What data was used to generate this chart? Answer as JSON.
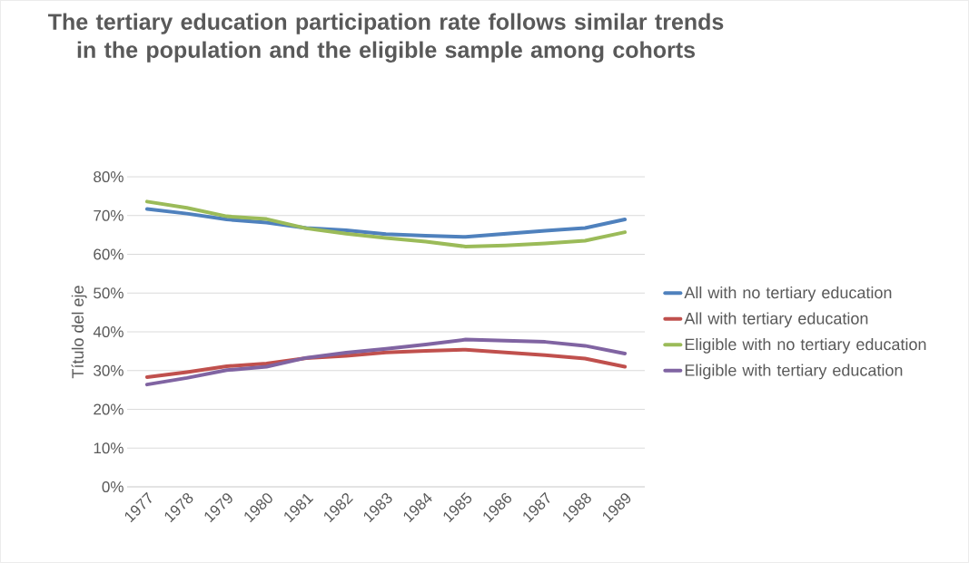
{
  "chart_data": {
    "type": "line",
    "title": "The tertiary education participation rate follows similar trends in the population and the eligible sample among cohorts",
    "ylabel": "Título del eje",
    "categories": [
      "1977",
      "1978",
      "1979",
      "1980",
      "1981",
      "1982",
      "1983",
      "1984",
      "1985",
      "1986",
      "1987",
      "1988",
      "1989"
    ],
    "series": [
      {
        "name": "All with no tertiary education",
        "color": "#4f81bd",
        "values": [
          71.7,
          70.5,
          69,
          68.2,
          66.8,
          66.2,
          65.2,
          64.8,
          64.5,
          65.3,
          66.1,
          66.8,
          69
        ]
      },
      {
        "name": "All with tertiary education",
        "color": "#c0504d",
        "values": [
          28.3,
          29.6,
          31.1,
          31.8,
          33.2,
          33.8,
          34.7,
          35.1,
          35.4,
          34.7,
          34,
          33.1,
          31
        ]
      },
      {
        "name": "Eligible with no tertiary education",
        "color": "#9bbb59",
        "values": [
          73.6,
          72,
          69.8,
          69.1,
          66.7,
          65.3,
          64.2,
          63.3,
          62,
          62.3,
          62.8,
          63.5,
          65.7
        ]
      },
      {
        "name": "Eligible with tertiary education",
        "color": "#8064a2",
        "values": [
          26.4,
          28.1,
          30.1,
          31,
          33.3,
          34.6,
          35.6,
          36.7,
          38,
          37.7,
          37.4,
          36.4,
          34.4
        ]
      }
    ],
    "ylim": [
      0,
      80
    ],
    "yticks": [
      {
        "value": 0,
        "label": "0%"
      },
      {
        "value": 10,
        "label": "10%"
      },
      {
        "value": 20,
        "label": "20%"
      },
      {
        "value": 30,
        "label": "30%"
      },
      {
        "value": 40,
        "label": "40%"
      },
      {
        "value": 50,
        "label": "50%"
      },
      {
        "value": 60,
        "label": "60%"
      },
      {
        "value": 70,
        "label": "70%"
      },
      {
        "value": 80,
        "label": "80%"
      }
    ],
    "grid": "y",
    "legend": "right",
    "line_style": "solid"
  }
}
